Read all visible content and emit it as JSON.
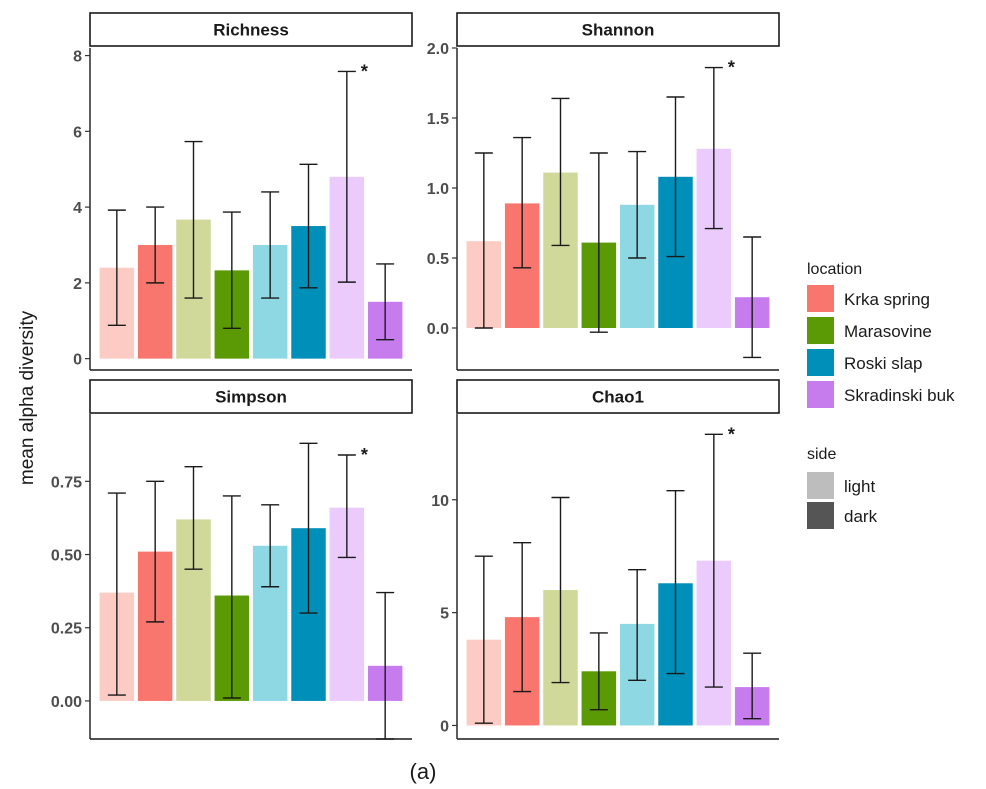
{
  "chart_data": {
    "type": "bar",
    "ylabel": "mean alpha diversity",
    "caption": "(a)",
    "bar_order": [
      {
        "location": "Krka spring",
        "side": "light"
      },
      {
        "location": "Krka spring",
        "side": "dark"
      },
      {
        "location": "Marasovine",
        "side": "light"
      },
      {
        "location": "Marasovine",
        "side": "dark"
      },
      {
        "location": "Roski slap",
        "side": "light"
      },
      {
        "location": "Roski slap",
        "side": "dark"
      },
      {
        "location": "Skradinski buk",
        "side": "light"
      },
      {
        "location": "Skradinski buk",
        "side": "dark"
      }
    ],
    "colors": {
      "Krka spring": {
        "light": "#fccbc4",
        "dark": "#f8766d"
      },
      "Marasovine": {
        "light": "#d0d99a",
        "dark": "#5b9a05"
      },
      "Roski slap": {
        "light": "#8ed8e4",
        "dark": "#008fb8"
      },
      "Skradinski buk": {
        "light": "#ebcafc",
        "dark": "#c77cee"
      }
    },
    "panels": [
      {
        "title": "Richness",
        "ylim": [
          -0.3,
          8.2
        ],
        "yticks": [
          0,
          2,
          4,
          6,
          8
        ],
        "tick_labels": [
          "0",
          "2",
          "4",
          "6",
          "8"
        ],
        "values": [
          2.4,
          3.0,
          3.67,
          2.33,
          3.0,
          3.5,
          4.8,
          1.5
        ],
        "err_low": [
          0.88,
          2.0,
          1.6,
          0.8,
          1.6,
          1.87,
          2.02,
          0.5
        ],
        "err_high": [
          3.92,
          4.0,
          5.73,
          3.87,
          4.4,
          5.13,
          7.58,
          2.5
        ],
        "annotation": {
          "text": "*",
          "bar": 6
        }
      },
      {
        "title": "Shannon",
        "ylim": [
          -0.3,
          2.0
        ],
        "yticks": [
          0,
          0.5,
          1,
          1.5,
          2
        ],
        "tick_labels": [
          "0.0",
          "0.5",
          "1.0",
          "1.5",
          "2.0"
        ],
        "values": [
          0.62,
          0.89,
          1.11,
          0.61,
          0.88,
          1.08,
          1.28,
          0.22
        ],
        "err_low": [
          0.0,
          0.43,
          0.59,
          -0.03,
          0.5,
          0.51,
          0.71,
          -0.21
        ],
        "err_high": [
          1.25,
          1.36,
          1.64,
          1.25,
          1.26,
          1.65,
          1.86,
          0.65
        ],
        "annotation": {
          "text": "*",
          "bar": 6
        }
      },
      {
        "title": "Simpson",
        "ylim": [
          -0.13,
          0.98
        ],
        "yticks": [
          0,
          0.25,
          0.5,
          0.75
        ],
        "tick_labels": [
          "0.00",
          "0.25",
          "0.50",
          "0.75"
        ],
        "values": [
          0.37,
          0.51,
          0.62,
          0.36,
          0.53,
          0.59,
          0.66,
          0.12
        ],
        "err_low": [
          0.02,
          0.27,
          0.45,
          0.01,
          0.39,
          0.3,
          0.49,
          -0.13
        ],
        "err_high": [
          0.71,
          0.75,
          0.8,
          0.7,
          0.67,
          0.88,
          0.84,
          0.37
        ],
        "annotation": {
          "text": "*",
          "bar": 6
        }
      },
      {
        "title": "Chao1",
        "ylim": [
          -0.6,
          13.8
        ],
        "yticks": [
          0,
          5,
          10
        ],
        "tick_labels": [
          "0",
          "5",
          "10"
        ],
        "values": [
          3.8,
          4.8,
          6.0,
          2.4,
          4.5,
          6.3,
          7.3,
          1.7
        ],
        "err_low": [
          0.1,
          1.5,
          1.9,
          0.7,
          2.0,
          2.3,
          1.7,
          0.3
        ],
        "err_high": [
          7.5,
          8.1,
          10.1,
          4.1,
          6.9,
          10.4,
          12.9,
          3.2
        ],
        "annotation": {
          "text": "*",
          "bar": 6
        }
      }
    ],
    "legend": {
      "location_title": "location",
      "locations": [
        "Krka spring",
        "Marasovine",
        "Roski slap",
        "Skradinski buk"
      ],
      "side_title": "side",
      "sides": [
        "light",
        "dark"
      ],
      "side_colors": {
        "light": "#bdbdbd",
        "dark": "#555555"
      }
    }
  }
}
